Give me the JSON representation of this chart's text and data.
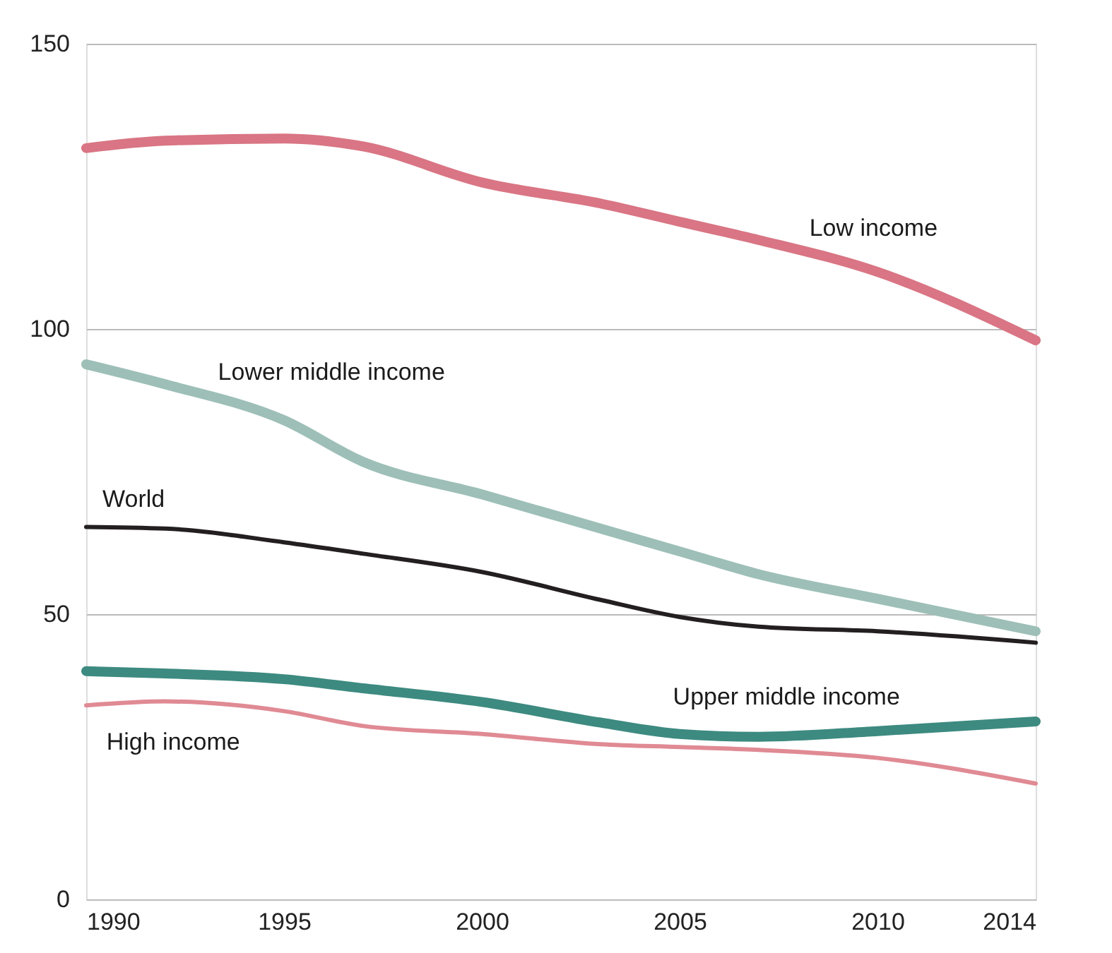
{
  "chart_data": {
    "type": "line",
    "x": [
      1990,
      1992,
      1995,
      1997,
      2000,
      2003,
      2005,
      2007,
      2010,
      2014
    ],
    "series": [
      {
        "name": "Low income",
        "color": "#d97584",
        "values": [
          131.7,
          133,
          133.4,
          132,
          125.7,
          122,
          118.8,
          115.6,
          110,
          98
        ]
      },
      {
        "name": "Lower middle income",
        "color": "#9dbfb7",
        "values": [
          93.8,
          90.3,
          84,
          76.7,
          71,
          65,
          61,
          57,
          52.7,
          47
        ]
      },
      {
        "name": "World",
        "color": "#231f20",
        "values": [
          65.3,
          65,
          62.6,
          60.6,
          57.4,
          52.5,
          49.5,
          47.8,
          47,
          45
        ]
      },
      {
        "name": "Upper middle income",
        "color": "#3d8a80",
        "values": [
          40,
          39.6,
          38.6,
          37,
          34.6,
          31,
          29,
          28.5,
          29.5,
          31.2
        ]
      },
      {
        "name": "High income",
        "color": "#e08a94",
        "values": [
          34,
          34.7,
          33,
          30.4,
          29,
          27.2,
          26.7,
          26.2,
          24.8,
          20.3
        ]
      }
    ],
    "xlim": [
      1990,
      2014
    ],
    "xticks": [
      1990,
      1995,
      2000,
      2005,
      2010,
      2014
    ],
    "ylim": [
      0,
      150
    ],
    "yticks": [
      0,
      50,
      100,
      150
    ],
    "grid": "y",
    "legend": false,
    "marker": "none",
    "line_style": "solid"
  }
}
